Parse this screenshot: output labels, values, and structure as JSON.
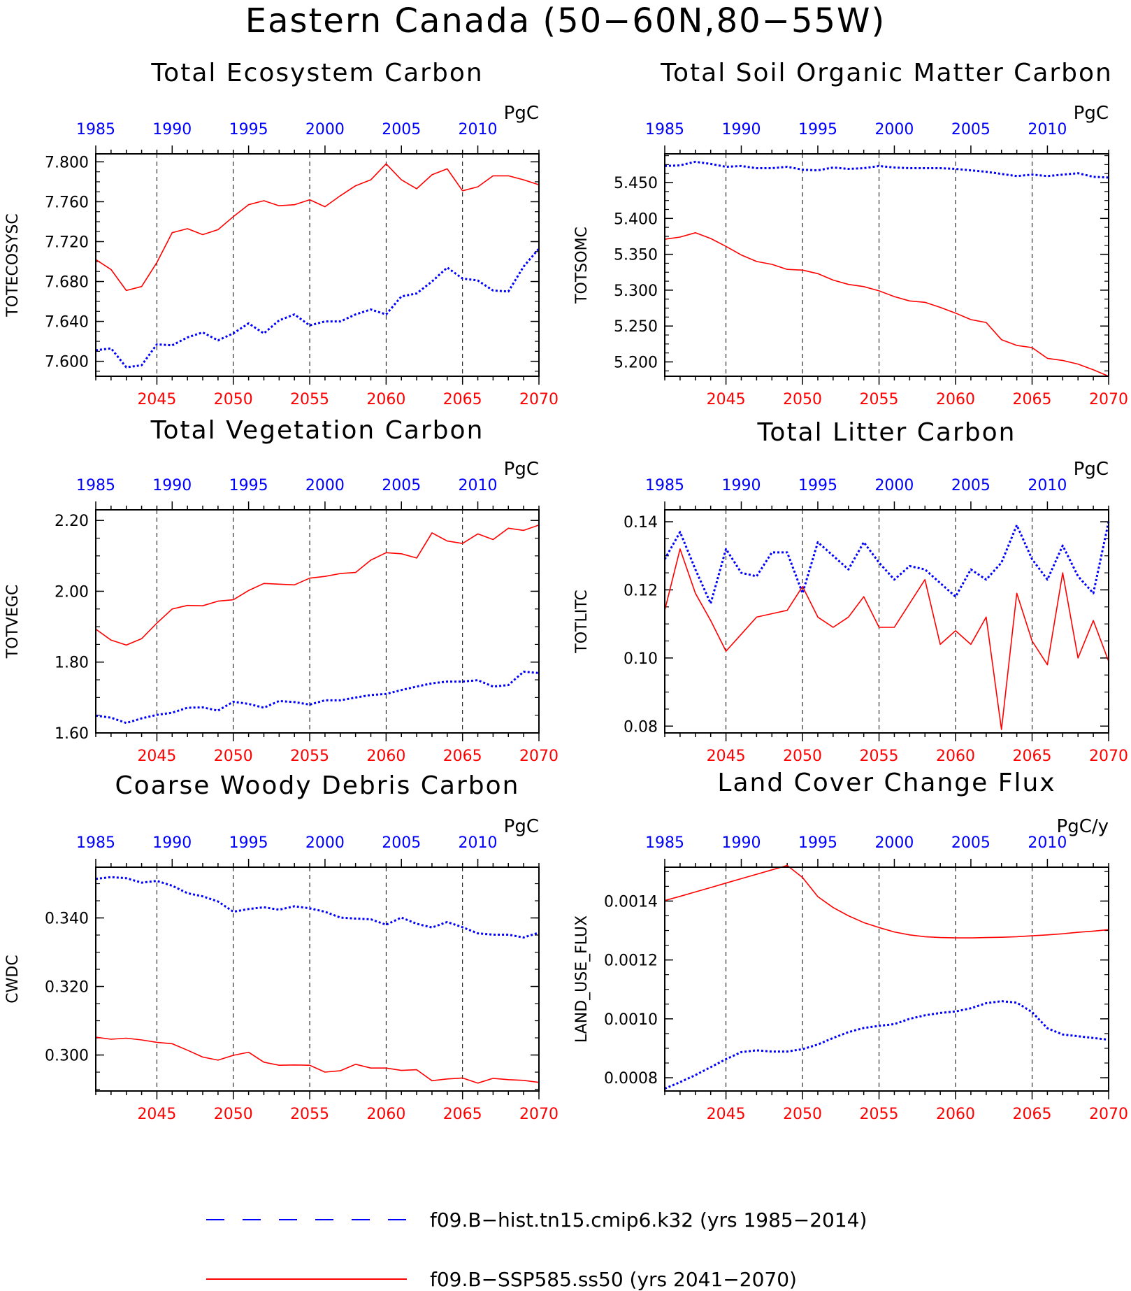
{
  "title": "Eastern Canada (50−60N,80−55W)",
  "colors": {
    "hist": "#0000ff",
    "ssp": "#ff0000"
  },
  "legend": [
    {
      "series": "hist",
      "label": "f09.B−hist.tn15.cmip6.k32 (yrs 1985−2014)",
      "style": "dashed"
    },
    {
      "series": "ssp",
      "label": "f09.B−SSP585.ss50 (yrs 2041−2070)",
      "style": "solid"
    }
  ],
  "chart_data": [
    {
      "type": "line",
      "title": "Total Ecosystem Carbon",
      "ylabel": "TOTECOSYSC",
      "unit": "PgC",
      "xlim_bottom": [
        2041,
        2070
      ],
      "xlim_top": [
        1985,
        2014
      ],
      "xticks_bottom": [
        "2045",
        "2050",
        "2055",
        "2060",
        "2065",
        "2070"
      ],
      "xticks_top": [
        "1985",
        "1990",
        "1995",
        "2000",
        "2005",
        "2010"
      ],
      "ylim": [
        7.585,
        7.808
      ],
      "yticks": [
        "7.600",
        "7.640",
        "7.680",
        "7.720",
        "7.760",
        "7.800"
      ],
      "series": [
        {
          "name": "f09.B−SSP585.ss50",
          "key": "ssp",
          "x": [
            2041,
            2042,
            2043,
            2044,
            2045,
            2046,
            2047,
            2048,
            2049,
            2050,
            2051,
            2052,
            2053,
            2054,
            2055,
            2056,
            2057,
            2058,
            2059,
            2060,
            2061,
            2062,
            2063,
            2064,
            2065,
            2066,
            2067,
            2068,
            2069,
            2070
          ],
          "values": [
            7.702,
            7.692,
            7.671,
            7.675,
            7.699,
            7.729,
            7.733,
            7.727,
            7.732,
            7.745,
            7.757,
            7.761,
            7.756,
            7.757,
            7.762,
            7.755,
            7.766,
            7.776,
            7.782,
            7.798,
            7.782,
            7.773,
            7.787,
            7.793,
            7.771,
            7.775,
            7.786,
            7.786,
            7.782,
            7.777
          ]
        },
        {
          "name": "f09.B−hist.tn15.cmip6.k32",
          "key": "hist",
          "x": [
            1985,
            1986,
            1987,
            1988,
            1989,
            1990,
            1991,
            1992,
            1993,
            1994,
            1995,
            1996,
            1997,
            1998,
            1999,
            2000,
            2001,
            2002,
            2003,
            2004,
            2005,
            2006,
            2007,
            2008,
            2009,
            2010,
            2011,
            2012,
            2013,
            2014
          ],
          "values": [
            7.611,
            7.613,
            7.594,
            7.596,
            7.617,
            7.616,
            7.624,
            7.629,
            7.621,
            7.628,
            7.638,
            7.628,
            7.641,
            7.647,
            7.636,
            7.64,
            7.64,
            7.647,
            7.652,
            7.647,
            7.665,
            7.668,
            7.68,
            7.694,
            7.683,
            7.681,
            7.671,
            7.67,
            7.695,
            7.713
          ]
        }
      ]
    },
    {
      "type": "line",
      "title": "Total Soil Organic Matter Carbon",
      "ylabel": "TOTSOMC",
      "unit": "PgC",
      "xlim_bottom": [
        2041,
        2070
      ],
      "xlim_top": [
        1985,
        2014
      ],
      "xticks_bottom": [
        "2045",
        "2050",
        "2055",
        "2060",
        "2065",
        "2070"
      ],
      "xticks_top": [
        "1985",
        "1990",
        "1995",
        "2000",
        "2005",
        "2010"
      ],
      "ylim": [
        5.18,
        5.49
      ],
      "yticks": [
        "5.200",
        "5.250",
        "5.300",
        "5.350",
        "5.400",
        "5.450"
      ],
      "series": [
        {
          "name": "f09.B−SSP585.ss50",
          "key": "ssp",
          "x": [
            2041,
            2042,
            2043,
            2044,
            2045,
            2046,
            2047,
            2048,
            2049,
            2050,
            2051,
            2052,
            2053,
            2054,
            2055,
            2056,
            2057,
            2058,
            2059,
            2060,
            2061,
            2062,
            2063,
            2064,
            2065,
            2066,
            2067,
            2068,
            2069,
            2070
          ],
          "values": [
            5.371,
            5.374,
            5.38,
            5.372,
            5.361,
            5.349,
            5.34,
            5.336,
            5.329,
            5.328,
            5.323,
            5.314,
            5.308,
            5.305,
            5.299,
            5.291,
            5.285,
            5.283,
            5.276,
            5.268,
            5.259,
            5.255,
            5.231,
            5.223,
            5.22,
            5.205,
            5.202,
            5.197,
            5.189,
            5.18
          ]
        },
        {
          "name": "f09.B−hist.tn15.cmip6.k32",
          "key": "hist",
          "x": [
            1985,
            1986,
            1987,
            1988,
            1989,
            1990,
            1991,
            1992,
            1993,
            1994,
            1995,
            1996,
            1997,
            1998,
            1999,
            2000,
            2001,
            2002,
            2003,
            2004,
            2005,
            2006,
            2007,
            2008,
            2009,
            2010,
            2011,
            2012,
            2013,
            2014
          ],
          "values": [
            5.473,
            5.474,
            5.479,
            5.476,
            5.472,
            5.473,
            5.47,
            5.47,
            5.472,
            5.468,
            5.467,
            5.471,
            5.469,
            5.47,
            5.473,
            5.471,
            5.47,
            5.47,
            5.47,
            5.469,
            5.467,
            5.465,
            5.462,
            5.459,
            5.461,
            5.459,
            5.461,
            5.463,
            5.458,
            5.457
          ]
        }
      ]
    },
    {
      "type": "line",
      "title": "Total Vegetation Carbon",
      "ylabel": "TOTVEGC",
      "unit": "PgC",
      "xlim_bottom": [
        2041,
        2070
      ],
      "xlim_top": [
        1985,
        2014
      ],
      "xticks_bottom": [
        "2045",
        "2050",
        "2055",
        "2060",
        "2065",
        "2070"
      ],
      "xticks_top": [
        "1985",
        "1990",
        "1995",
        "2000",
        "2005",
        "2010"
      ],
      "ylim": [
        1.6,
        2.23
      ],
      "yticks": [
        "1.60",
        "1.80",
        "2.00",
        "2.20"
      ],
      "series": [
        {
          "name": "f09.B−SSP585.ss50",
          "key": "ssp",
          "x": [
            2041,
            2042,
            2043,
            2044,
            2045,
            2046,
            2047,
            2048,
            2049,
            2050,
            2051,
            2052,
            2053,
            2054,
            2055,
            2056,
            2057,
            2058,
            2059,
            2060,
            2061,
            2062,
            2063,
            2064,
            2065,
            2066,
            2067,
            2068,
            2069,
            2070
          ],
          "values": [
            1.893,
            1.862,
            1.848,
            1.866,
            1.91,
            1.95,
            1.96,
            1.959,
            1.972,
            1.976,
            2.002,
            2.022,
            2.02,
            2.018,
            2.037,
            2.042,
            2.05,
            2.053,
            2.088,
            2.109,
            2.106,
            2.094,
            2.165,
            2.142,
            2.135,
            2.162,
            2.146,
            2.178,
            2.172,
            2.187
          ]
        },
        {
          "name": "f09.B−hist.tn15.cmip6.k32",
          "key": "hist",
          "x": [
            1985,
            1986,
            1987,
            1988,
            1989,
            1990,
            1991,
            1992,
            1993,
            1994,
            1995,
            1996,
            1997,
            1998,
            1999,
            2000,
            2001,
            2002,
            2003,
            2004,
            2005,
            2006,
            2007,
            2008,
            2009,
            2010,
            2011,
            2012,
            2013,
            2014
          ],
          "values": [
            1.649,
            1.643,
            1.628,
            1.641,
            1.651,
            1.657,
            1.671,
            1.672,
            1.663,
            1.688,
            1.682,
            1.671,
            1.69,
            1.687,
            1.68,
            1.692,
            1.692,
            1.7,
            1.707,
            1.71,
            1.721,
            1.731,
            1.74,
            1.745,
            1.745,
            1.749,
            1.731,
            1.735,
            1.773,
            1.769
          ]
        }
      ]
    },
    {
      "type": "line",
      "title": "Total Litter Carbon",
      "ylabel": "TOTLITC",
      "unit": "PgC",
      "xlim_bottom": [
        2041,
        2070
      ],
      "xlim_top": [
        1985,
        2014
      ],
      "xticks_bottom": [
        "2045",
        "2050",
        "2055",
        "2060",
        "2065",
        "2070"
      ],
      "xticks_top": [
        "1985",
        "1990",
        "1995",
        "2000",
        "2005",
        "2010"
      ],
      "ylim": [
        0.078,
        0.1435
      ],
      "yticks": [
        "0.08",
        "0.10",
        "0.12",
        "0.14"
      ],
      "series": [
        {
          "name": "f09.B−SSP585.ss50",
          "key": "ssp",
          "x": [
            2041,
            2042,
            2043,
            2044,
            2045,
            2046,
            2047,
            2048,
            2049,
            2050,
            2051,
            2052,
            2053,
            2054,
            2055,
            2056,
            2057,
            2058,
            2059,
            2060,
            2061,
            2062,
            2063,
            2064,
            2065,
            2066,
            2067,
            2068,
            2069,
            2070
          ],
          "values": [
            0.114,
            0.132,
            0.119,
            0.111,
            0.102,
            0.107,
            0.112,
            0.113,
            0.114,
            0.121,
            0.112,
            0.109,
            0.112,
            0.118,
            0.109,
            0.109,
            0.116,
            0.123,
            0.104,
            0.108,
            0.104,
            0.112,
            0.079,
            0.119,
            0.105,
            0.098,
            0.125,
            0.1,
            0.111,
            0.099
          ]
        },
        {
          "name": "f09.B−hist.tn15.cmip6.k32",
          "key": "hist",
          "x": [
            1985,
            1986,
            1987,
            1988,
            1989,
            1990,
            1991,
            1992,
            1993,
            1994,
            1995,
            1996,
            1997,
            1998,
            1999,
            2000,
            2001,
            2002,
            2003,
            2004,
            2005,
            2006,
            2007,
            2008,
            2009,
            2010,
            2011,
            2012,
            2013,
            2014
          ],
          "values": [
            0.129,
            0.137,
            0.126,
            0.116,
            0.132,
            0.125,
            0.124,
            0.131,
            0.131,
            0.119,
            0.134,
            0.13,
            0.126,
            0.134,
            0.128,
            0.123,
            0.127,
            0.126,
            0.122,
            0.118,
            0.126,
            0.123,
            0.128,
            0.139,
            0.129,
            0.123,
            0.133,
            0.124,
            0.119,
            0.14
          ]
        }
      ]
    },
    {
      "type": "line",
      "title": "Coarse Woody Debris Carbon",
      "ylabel": "CWDC",
      "unit": "PgC",
      "xlim_bottom": [
        2041,
        2070
      ],
      "xlim_top": [
        1985,
        2014
      ],
      "xticks_bottom": [
        "2045",
        "2050",
        "2055",
        "2060",
        "2065",
        "2070"
      ],
      "xticks_top": [
        "1985",
        "1990",
        "1995",
        "2000",
        "2005",
        "2010"
      ],
      "ylim": [
        0.2895,
        0.3548
      ],
      "yticks": [
        "0.300",
        "0.320",
        "0.340"
      ],
      "series": [
        {
          "name": "f09.B−SSP585.ss50",
          "key": "ssp",
          "x": [
            2041,
            2042,
            2043,
            2044,
            2045,
            2046,
            2047,
            2048,
            2049,
            2050,
            2051,
            2052,
            2053,
            2054,
            2055,
            2056,
            2057,
            2058,
            2059,
            2060,
            2061,
            2062,
            2063,
            2064,
            2065,
            2066,
            2067,
            2068,
            2069,
            2070
          ],
          "values": [
            0.3052,
            0.3046,
            0.3049,
            0.3044,
            0.3037,
            0.3033,
            0.3014,
            0.2994,
            0.2985,
            0.2999,
            0.3008,
            0.2979,
            0.297,
            0.2971,
            0.297,
            0.295,
            0.2954,
            0.2973,
            0.2962,
            0.2962,
            0.2955,
            0.2957,
            0.2925,
            0.293,
            0.2933,
            0.2918,
            0.2932,
            0.2928,
            0.2926,
            0.292
          ]
        },
        {
          "name": "f09.B−hist.tn15.cmip6.k32",
          "key": "hist",
          "x": [
            1985,
            1986,
            1987,
            1988,
            1989,
            1990,
            1991,
            1992,
            1993,
            1994,
            1995,
            1996,
            1997,
            1998,
            1999,
            2000,
            2001,
            2002,
            2003,
            2004,
            2005,
            2006,
            2007,
            2008,
            2009,
            2010,
            2011,
            2012,
            2013,
            2014
          ],
          "values": [
            0.3514,
            0.3519,
            0.3516,
            0.3503,
            0.3508,
            0.3494,
            0.3472,
            0.3463,
            0.3448,
            0.3418,
            0.3426,
            0.3431,
            0.3424,
            0.3434,
            0.3428,
            0.3418,
            0.3401,
            0.3398,
            0.3396,
            0.338,
            0.3401,
            0.3383,
            0.3372,
            0.3388,
            0.3373,
            0.3355,
            0.3351,
            0.3351,
            0.3343,
            0.3357
          ]
        }
      ]
    },
    {
      "type": "line",
      "title": "Land Cover Change Flux",
      "ylabel": "LAND_USE_FLUX",
      "unit": "PgC/y",
      "xlim_bottom": [
        2041,
        2070
      ],
      "xlim_top": [
        1985,
        2014
      ],
      "xticks_bottom": [
        "2045",
        "2050",
        "2055",
        "2060",
        "2065",
        "2070"
      ],
      "xticks_top": [
        "1985",
        "1990",
        "1995",
        "2000",
        "2005",
        "2010"
      ],
      "ylim": [
        0.000755,
        0.001515
      ],
      "yticks": [
        "0.0008",
        "0.0010",
        "0.0012",
        "0.0014"
      ],
      "series": [
        {
          "name": "f09.B−SSP585.ss50",
          "key": "ssp",
          "x": [
            2041,
            2042,
            2043,
            2044,
            2045,
            2046,
            2047,
            2048,
            2049,
            2050,
            2051,
            2052,
            2053,
            2054,
            2055,
            2056,
            2057,
            2058,
            2059,
            2060,
            2061,
            2062,
            2063,
            2064,
            2065,
            2066,
            2067,
            2068,
            2069,
            2070
          ],
          "values": [
            0.001402,
            0.001416,
            0.001431,
            0.001446,
            0.001461,
            0.001476,
            0.001491,
            0.001506,
            0.001521,
            0.00148,
            0.001415,
            0.001378,
            0.00135,
            0.001327,
            0.00131,
            0.001295,
            0.001285,
            0.001279,
            0.001276,
            0.001275,
            0.001275,
            0.001276,
            0.001277,
            0.001279,
            0.001282,
            0.001285,
            0.001289,
            0.001294,
            0.001298,
            0.001303
          ]
        },
        {
          "name": "f09.B−hist.tn15.cmip6.k32",
          "key": "hist",
          "x": [
            1985,
            1986,
            1987,
            1988,
            1989,
            1990,
            1991,
            1992,
            1993,
            1994,
            1995,
            1996,
            1997,
            1998,
            1999,
            2000,
            2001,
            2002,
            2003,
            2004,
            2005,
            2006,
            2007,
            2008,
            2009,
            2010,
            2011,
            2012,
            2013,
            2014
          ],
          "values": [
            0.000763,
            0.000785,
            0.000809,
            0.000836,
            0.000863,
            0.000887,
            0.000893,
            0.000889,
            0.000889,
            0.000897,
            0.000913,
            0.000935,
            0.000955,
            0.000969,
            0.000976,
            0.000982,
            0.001,
            0.001012,
            0.00102,
            0.001025,
            0.001036,
            0.001053,
            0.00106,
            0.001055,
            0.001023,
            0.000968,
            0.000947,
            0.000941,
            0.000935,
            0.000929
          ]
        }
      ]
    }
  ]
}
